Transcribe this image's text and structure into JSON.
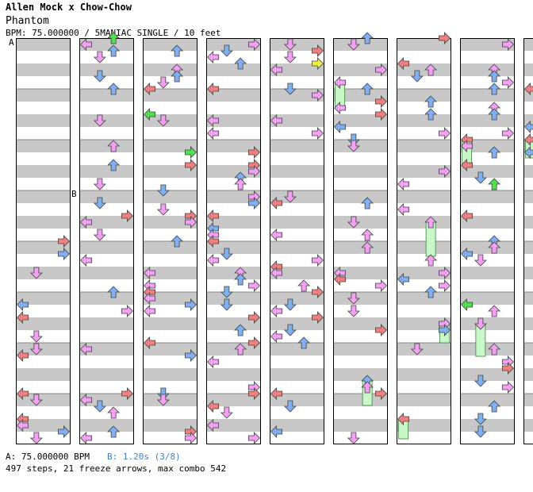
{
  "header": {
    "title": "Allen Mock x Chow-Chow",
    "song": "Phantom",
    "meta": "BPM: 75.000000 / 5MANIAC SINGLE / 10 feet"
  },
  "markers": {
    "a": "A",
    "b": "B"
  },
  "footer": {
    "bpm_a": "A: 75.000000 BPM",
    "bpm_b": "B: 1.20s (3/8)",
    "stats": "497 steps, 21 freeze arrows, max combo 542"
  },
  "colors": {
    "red": "#f08080",
    "blue": "#80b0f0",
    "pink": "#f4a0f4",
    "green": "#50e050",
    "yellow": "#f0f040",
    "freeze": "#c8f8c8",
    "stripe": "#c8c8c8",
    "border": "#000000"
  },
  "chart_data": {
    "type": "table",
    "columns": 9,
    "lanes": [
      "left",
      "down",
      "up",
      "right"
    ],
    "measures_per_column": 8,
    "rows_per_measure": 16
  }
}
